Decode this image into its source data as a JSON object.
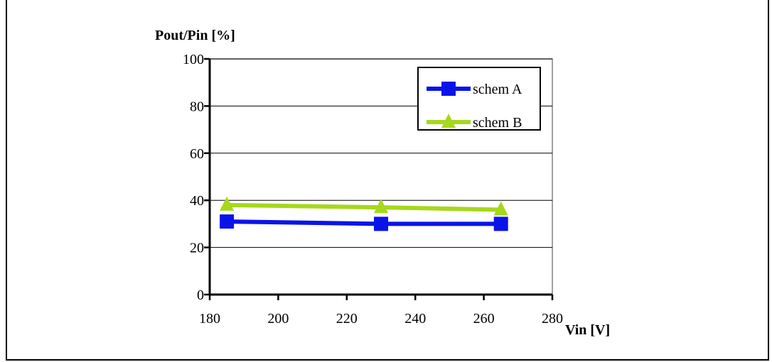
{
  "chart_data": {
    "type": "line",
    "title": "",
    "ylabel": "Pout/Pin [%]",
    "xlabel": "Vin [V]",
    "xlim": [
      180,
      280
    ],
    "ylim": [
      0,
      100
    ],
    "x_ticks": [
      "180",
      "200",
      "220",
      "240",
      "260",
      "280"
    ],
    "y_ticks": [
      "0",
      "20",
      "40",
      "60",
      "80",
      "100"
    ],
    "grid": true,
    "legend_position": "top-right",
    "x": [
      185,
      230,
      265
    ],
    "series": [
      {
        "name": "schem A",
        "values": [
          31,
          30,
          30
        ],
        "color": "#0a14e8",
        "marker": "square"
      },
      {
        "name": "schem B",
        "values": [
          38,
          37,
          36
        ],
        "color": "#a6d81c",
        "marker": "triangle"
      }
    ]
  }
}
